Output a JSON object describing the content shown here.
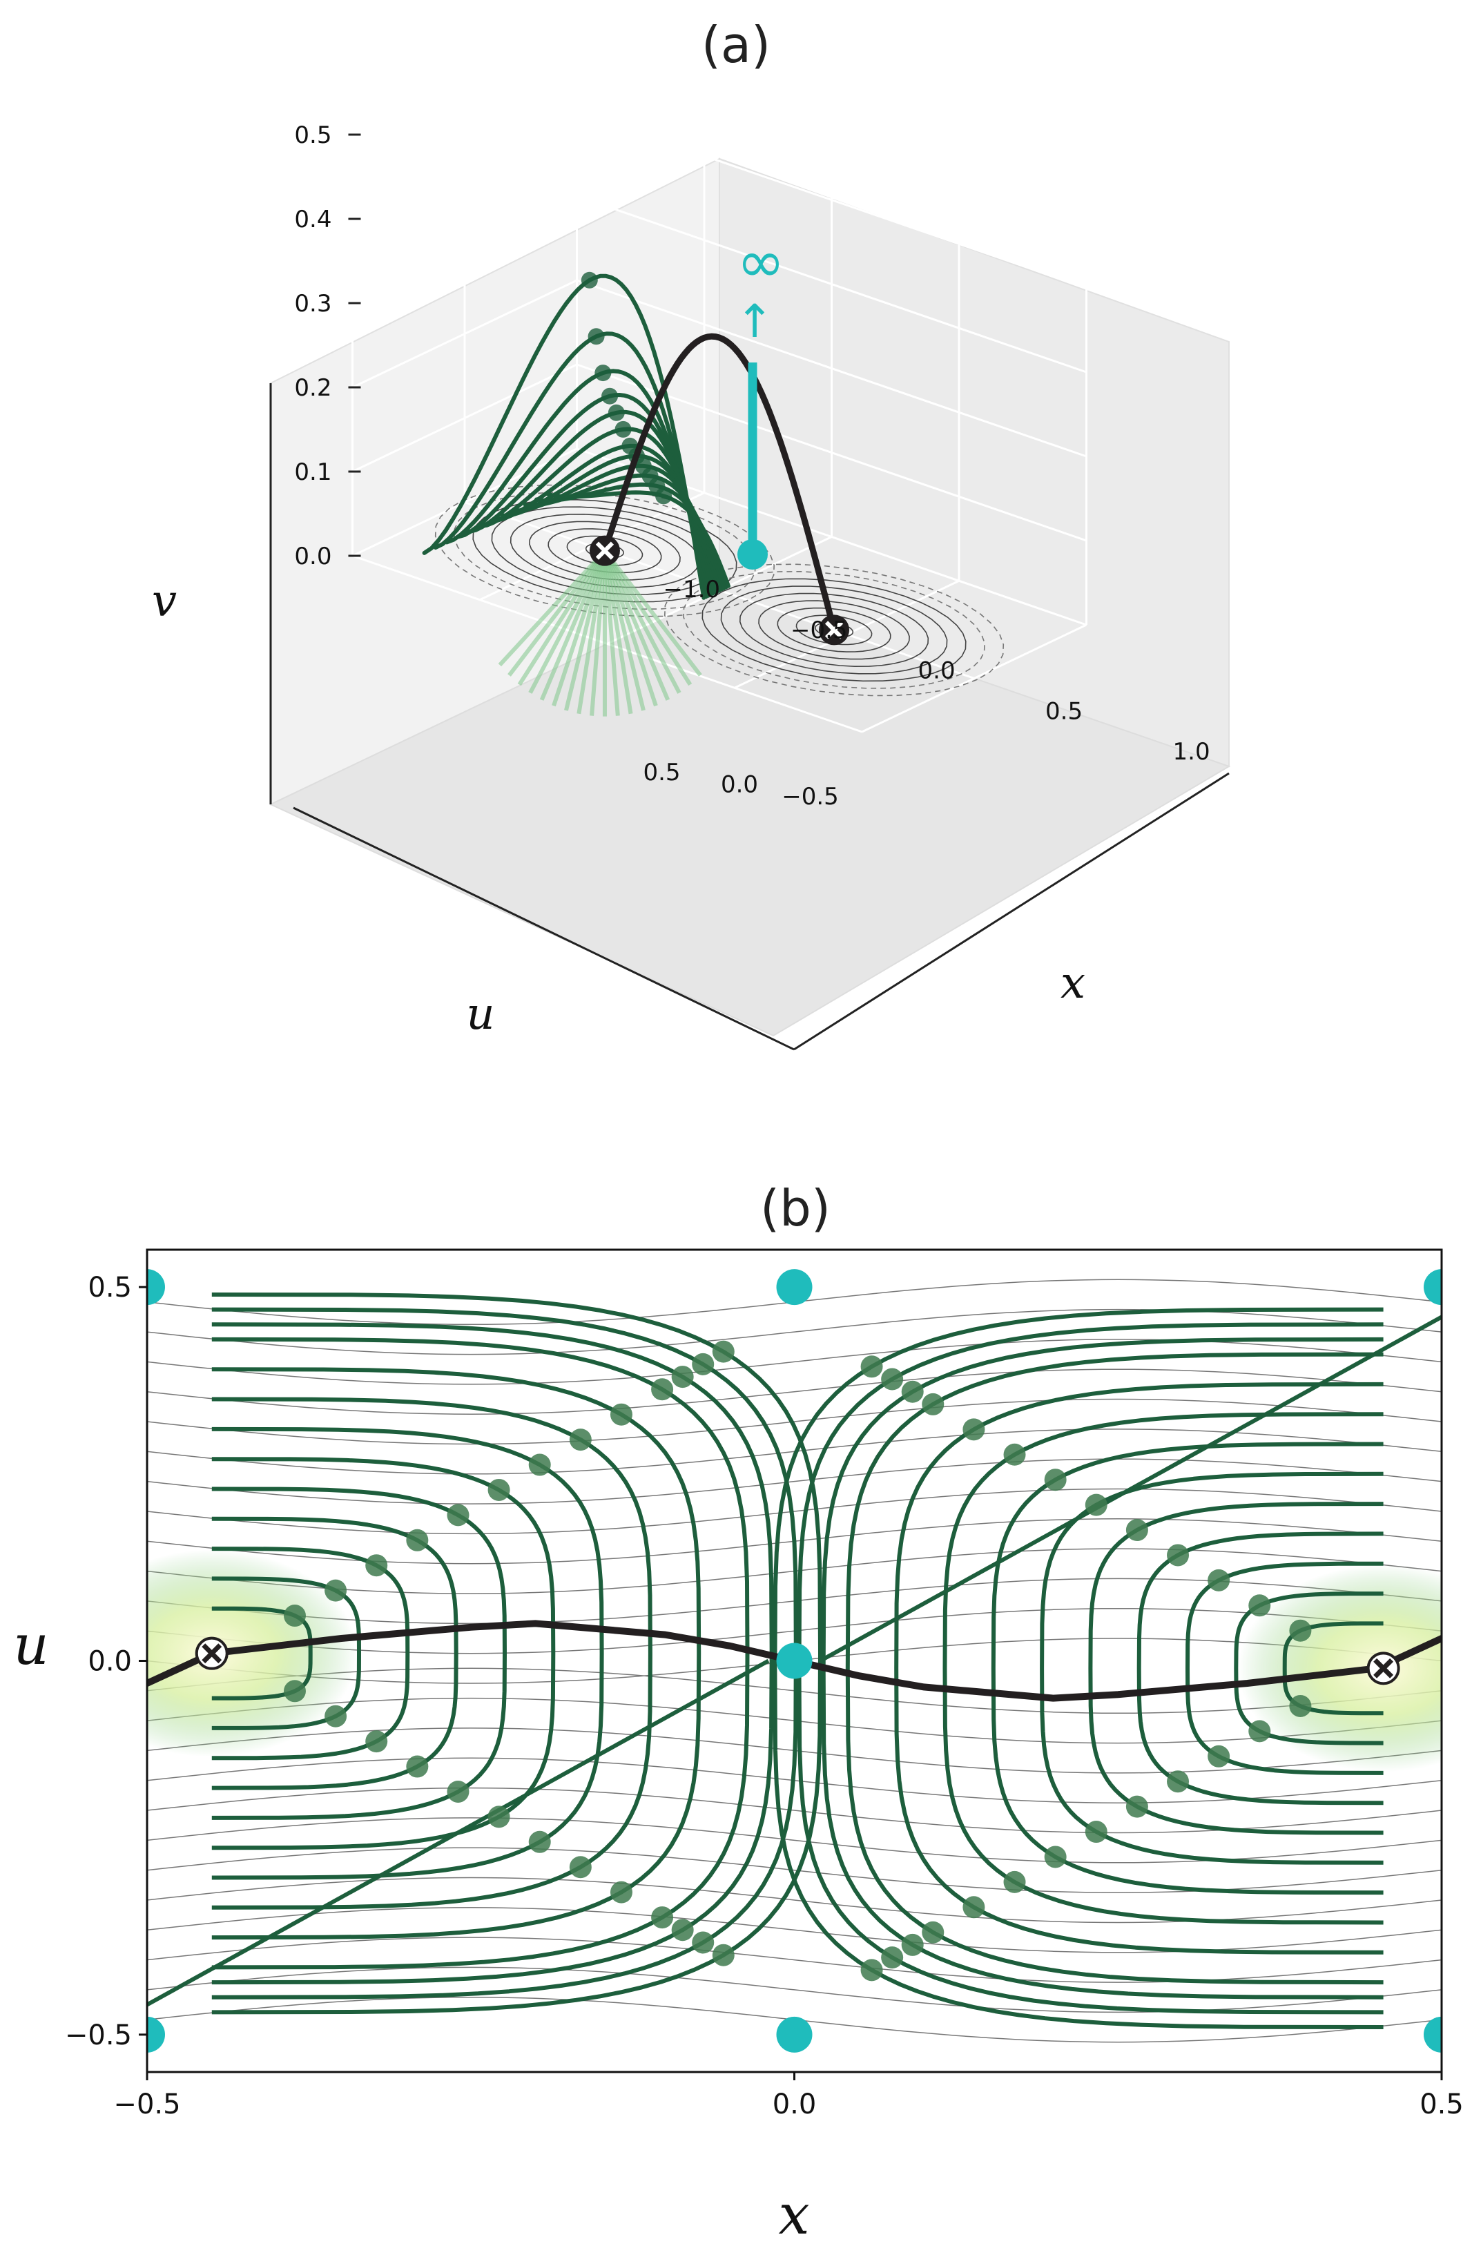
{
  "chart_data": [
    {
      "panel": "(a)",
      "type": "line",
      "projection": "3d",
      "xlabel": "x",
      "ylabel": "u",
      "zlabel": "v",
      "x_ticks": [
        "−1.0",
        "−0.5",
        "0.0",
        "0.5",
        "1.0"
      ],
      "u_ticks": [
        "−0.5",
        "0.0",
        "0.5"
      ],
      "v_ticks": [
        "0.0",
        "0.1",
        "0.2",
        "0.3",
        "0.4",
        "0.5"
      ],
      "xlim": [
        -1.0,
        1.0
      ],
      "ulim": [
        -0.5,
        0.5
      ],
      "vlim": [
        0.0,
        0.5
      ],
      "grid": true,
      "annotations": [
        "∞",
        "↑"
      ],
      "fixed_points": [
        {
          "x": -0.45,
          "u": 0.0
        },
        {
          "x": 0.45,
          "u": 0.0
        }
      ],
      "singular_point": {
        "x": 0.0,
        "u": 0.0,
        "v": 0.3
      },
      "colors": {
        "trajectory": "#1d5e3c",
        "fan": "#7fc78a",
        "separatrix": "#231f20",
        "singular": "#1fbcbc",
        "contour": "#555555"
      }
    },
    {
      "panel": "(b)",
      "type": "line",
      "xlabel": "x",
      "ylabel": "u",
      "xlim": [
        -0.5,
        0.5
      ],
      "ylim": [
        -0.55,
        0.55
      ],
      "x_ticks": [
        "−0.5",
        "0.0",
        "0.5"
      ],
      "y_ticks": [
        "−0.5",
        "0.0",
        "0.5"
      ],
      "separatrix": {
        "x": [
          -0.5,
          -0.45,
          -0.35,
          -0.25,
          -0.2,
          -0.1,
          -0.05,
          0.0,
          0.05,
          0.1,
          0.2,
          0.25,
          0.35,
          0.45,
          0.5
        ],
        "u": [
          -0.03,
          0.01,
          0.03,
          0.045,
          0.05,
          0.035,
          0.02,
          0.0,
          -0.02,
          -0.035,
          -0.05,
          -0.045,
          -0.03,
          -0.01,
          0.03
        ]
      },
      "fixed_points": [
        {
          "x": -0.45,
          "u": 0.01
        },
        {
          "x": 0.455,
          "u": -0.01
        }
      ],
      "singular_points": [
        {
          "x": -0.5,
          "u": 0.5
        },
        {
          "x": 0.0,
          "u": 0.5
        },
        {
          "x": 0.5,
          "u": 0.5
        },
        {
          "x": 0.0,
          "u": 0.0
        },
        {
          "x": -0.5,
          "u": -0.5
        },
        {
          "x": 0.0,
          "u": -0.5
        },
        {
          "x": 0.5,
          "u": -0.5
        }
      ],
      "trajectory_levels": [
        0.06,
        0.1,
        0.14,
        0.18,
        0.22,
        0.26,
        0.3,
        0.34,
        0.38,
        0.42,
        0.44,
        0.46,
        0.48
      ],
      "colors": {
        "trajectory": "#1d5e3c",
        "marker": "#3f7a4f",
        "fan": "#a8d98c",
        "separatrix": "#231f20",
        "singular": "#1fbcbc",
        "contour": "#555555"
      }
    }
  ],
  "labels": {
    "title_a": "(a)",
    "title_b": "(b)",
    "infinity": "∞",
    "arrow": "↑",
    "xlabel_a": "x",
    "ulabel_a": "u",
    "vlabel_a": "v",
    "xlabel_b": "x",
    "ylabel_b": "u"
  }
}
